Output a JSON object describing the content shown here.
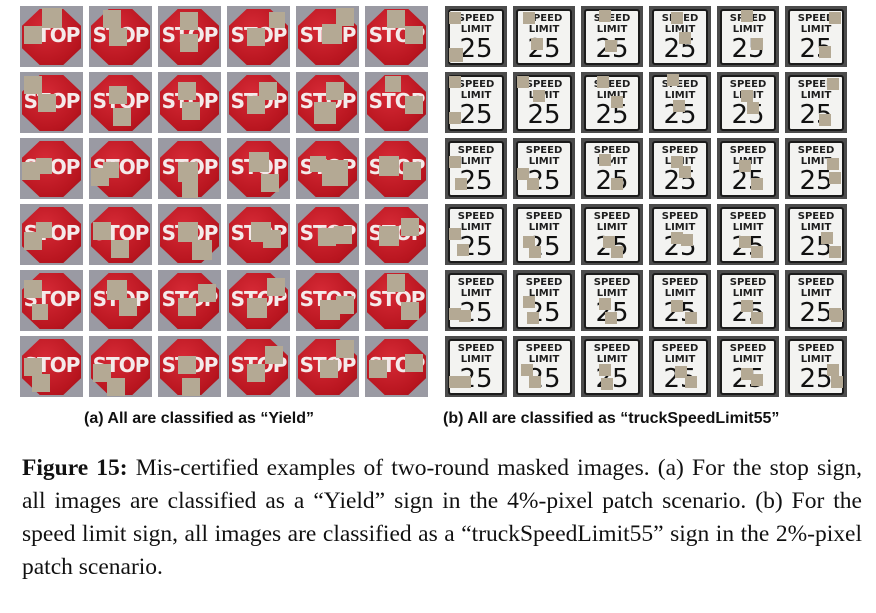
{
  "panel_a": {
    "sign_text": "STOP",
    "caption": "(a) All are classified as “Yield”",
    "rows": 6,
    "cols": 6
  },
  "panel_b": {
    "sign_line1": "SPEED",
    "sign_line2": "LIMIT",
    "sign_number": "25",
    "caption": "(b) All are classified as “truckSpeedLimit55”",
    "rows": 6,
    "cols": 6
  },
  "figure": {
    "label": "Figure 15:",
    "text": " Mis-certified examples of two-round masked images. (a) For the stop sign, all images are classified as a “Yield” sign in the 4%-pixel patch scenario. (b) For the speed limit sign, all images are classified as a “truckSpeedLimit55” sign in the 2%-pixel patch scenario."
  },
  "colors": {
    "patch": "#b4a994",
    "stop_red": "#c41e28",
    "speed_panel": "#f3f3f1"
  }
}
